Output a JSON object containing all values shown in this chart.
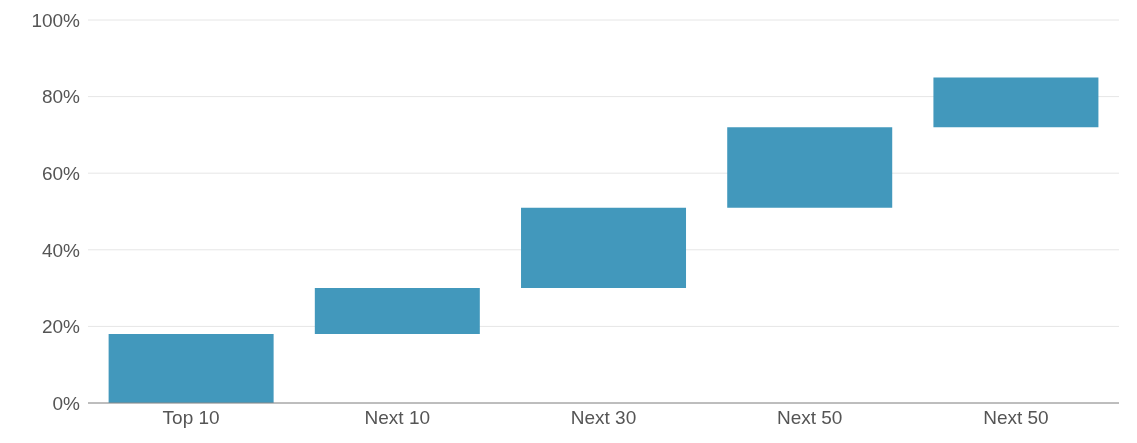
{
  "chart_data": {
    "type": "bar",
    "categories": [
      "Top 10",
      "Next 10",
      "Next 30",
      "Next 50",
      "Next 50"
    ],
    "values": [
      18,
      12,
      21,
      21,
      13
    ],
    "base": [
      0,
      18,
      30,
      51,
      72
    ],
    "color": "#4298bc",
    "ylim": [
      0,
      100
    ],
    "yticks": [
      {
        "value": 0,
        "label": "0%"
      },
      {
        "value": 20,
        "label": "20%"
      },
      {
        "value": 40,
        "label": "40%"
      },
      {
        "value": 60,
        "label": "60%"
      },
      {
        "value": 80,
        "label": "80%"
      },
      {
        "value": 100,
        "label": "100%"
      }
    ],
    "grid": "y"
  }
}
